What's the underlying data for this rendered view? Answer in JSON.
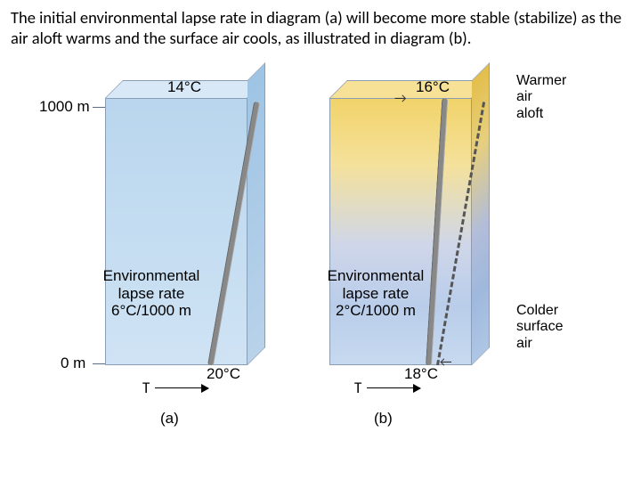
{
  "caption": "The initial environmental lapse rate in diagram (a) will become more stable (stabilize) as the air aloft warms and the surface air cools, as illustrated in diagram (b).",
  "axis": {
    "top_alt": "1000 m",
    "bottom_alt": "0 m",
    "t_label": "T"
  },
  "panel_a": {
    "label": "(a)",
    "top_temp": "14°C",
    "bottom_temp": "20°C",
    "rate_line1": "Environmental",
    "rate_line2": "lapse rate",
    "rate_line3": "6°C/1000 m",
    "gradient": {
      "top": "#b9d6ee",
      "bottom": "#cfe3f4"
    },
    "side_gradient_top": "#9fc4e4",
    "side_gradient_bottom": "#b9d2ea",
    "top_fill": "#d8e8f6",
    "lapse_angle_deg": 10,
    "lapse_height": 300
  },
  "panel_b": {
    "label": "(b)",
    "top_temp": "16°C",
    "bottom_temp": "18°C",
    "rate_line1": "Environmental",
    "rate_line2": "lapse rate",
    "rate_line3": "2°C/1000 m",
    "gradient": {
      "c0": "#f2d36a",
      "c1": "#f4e19b",
      "c2": "#cfd6e9",
      "c3": "#b9cdea",
      "c4": "#c7d9ef"
    },
    "side_gradient": {
      "c0": "#e3be4a",
      "c1": "#e7cf7d",
      "c2": "#b2bdd9",
      "c3": "#9fb8dd",
      "c4": "#afc7e5"
    },
    "top_fill": "#f6e197",
    "lapse_angle_deg": 3.5,
    "dashed_angle_deg": 10,
    "lapse_height": 300
  },
  "annot": {
    "warm": "Warmer\nair\naloft",
    "cold": "Colder\nsurface\nair"
  },
  "colors": {
    "text": "#000000",
    "block_edge": "#8a9db5",
    "rod": "#888888"
  }
}
